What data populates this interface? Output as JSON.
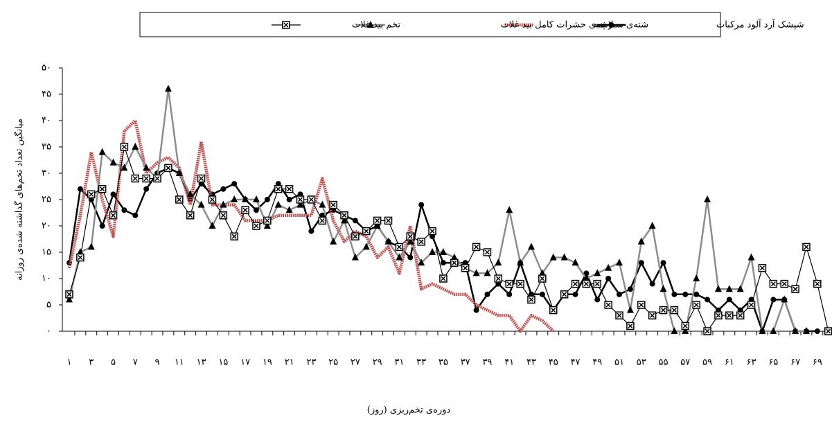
{
  "chart_data": {
    "type": "line",
    "x_label": "دوره‌ی تخم‌ریزی (روز)",
    "y_label": "میانگین تعداد تخم‌های گذاشته شده‌ی روزانه",
    "legend": "top",
    "categories": [
      "۱",
      null,
      "۳",
      null,
      "۵",
      null,
      "۷",
      null,
      "۹",
      null,
      "۱۱",
      null,
      "۱۳",
      null,
      "۱۵",
      null,
      "۱۷",
      null,
      "۱۹",
      null,
      "۲۱",
      null,
      "۲۳",
      null,
      "۲۵",
      null,
      "۲۷",
      null,
      "۲۹",
      null,
      "۳۱",
      null,
      "۳۳",
      null,
      "۳۵",
      null,
      "۳۷",
      null,
      "۳۹",
      null,
      "۴۱",
      null,
      "۴۳",
      null,
      "۴۵",
      null,
      "۴۷",
      null,
      "۴۹",
      null,
      "۵۱",
      null,
      "۵۳",
      null,
      "۵۵",
      null,
      "۵۷",
      null,
      "۵۹",
      null,
      "۶۱",
      null,
      "۶۳",
      null,
      "۶۵",
      null,
      "۶۷",
      null,
      "۶۹",
      null
    ],
    "ylim": [
      0,
      50
    ],
    "yticks": [
      {
        "value": 0,
        "label": "۰"
      },
      {
        "value": 5,
        "label": "۵"
      },
      {
        "value": 10,
        "label": "۱۰"
      },
      {
        "value": 15,
        "label": "۱۵"
      },
      {
        "value": 20,
        "label": "۲۰"
      },
      {
        "value": 25,
        "label": "۲۵"
      },
      {
        "value": 30,
        "label": "۳۰"
      },
      {
        "value": 35,
        "label": "۳۵"
      },
      {
        "value": 40,
        "label": "۴۰"
      },
      {
        "value": 45,
        "label": "۴۵"
      },
      {
        "value": 50,
        "label": "۵۰"
      }
    ],
    "series": [
      {
        "name": "شپشک آرد آلود مرکبات",
        "color": "#000000",
        "marker": "circle",
        "values": [
          13,
          27,
          25,
          20,
          26,
          23,
          22,
          27,
          30,
          31,
          30,
          25,
          28,
          26,
          27,
          28,
          25,
          23,
          25,
          28,
          25,
          26,
          19,
          22,
          23,
          22,
          21,
          19,
          20,
          17,
          16,
          14,
          24,
          18,
          13,
          13,
          13,
          4,
          7,
          9,
          7,
          13,
          7,
          7,
          4,
          7,
          7,
          11,
          6,
          10,
          7,
          8,
          13,
          9,
          13,
          7,
          7,
          7,
          6,
          4,
          6,
          4,
          6,
          0,
          6,
          6,
          0,
          0,
          0,
          null
        ]
      },
      {
        "name": "شته‌ی سبز پنبه",
        "color": "#c0504d",
        "marker": "none",
        "values": [
          12,
          22,
          34,
          25,
          18,
          38,
          40,
          30,
          32,
          33,
          31,
          24,
          36,
          24,
          24,
          24,
          21,
          21,
          21,
          22,
          22,
          22,
          22,
          29,
          21,
          17,
          19,
          18,
          14,
          16,
          11,
          20,
          8,
          9,
          8,
          7,
          7,
          5,
          4,
          3,
          3,
          0,
          3,
          2,
          0,
          null,
          null,
          null,
          null,
          null,
          null,
          null,
          null,
          null,
          null,
          null,
          null,
          null,
          null,
          null,
          null,
          null,
          null,
          null,
          null,
          null,
          null,
          null,
          null,
          null
        ]
      },
      {
        "name": "لاشه‌ی حشرات کامل بید غلات",
        "color": "#8c8c8c",
        "marker": "triangle",
        "values": [
          6,
          15,
          16,
          34,
          32,
          31,
          35,
          31,
          29,
          46,
          30,
          26,
          24,
          20,
          24,
          25,
          25,
          25,
          20,
          24,
          23,
          24,
          25,
          24,
          17,
          21,
          14,
          16,
          20,
          17,
          14,
          17,
          13,
          15,
          15,
          14,
          12,
          11,
          11,
          13,
          23,
          13,
          16,
          11,
          14,
          14,
          13,
          10,
          11,
          12,
          13,
          4,
          17,
          20,
          8,
          0,
          0,
          10,
          25,
          8,
          8,
          8,
          14,
          0,
          0,
          6,
          0,
          0,
          null,
          null
        ]
      },
      {
        "name": "تخم بید غلات",
        "color": "#000000",
        "marker": "square-x",
        "values": [
          7,
          14,
          26,
          27,
          22,
          35,
          29,
          29,
          29,
          31,
          25,
          22,
          29,
          25,
          22,
          18,
          23,
          20,
          21,
          27,
          27,
          25,
          25,
          21,
          24,
          22,
          18,
          19,
          21,
          21,
          16,
          18,
          17,
          19,
          10,
          13,
          12,
          16,
          15,
          10,
          9,
          9,
          6,
          10,
          4,
          7,
          9,
          9,
          9,
          5,
          3,
          1,
          5,
          3,
          4,
          4,
          1,
          5,
          0,
          3,
          3,
          3,
          5,
          12,
          9,
          9,
          8,
          16,
          9,
          0
        ]
      }
    ]
  }
}
